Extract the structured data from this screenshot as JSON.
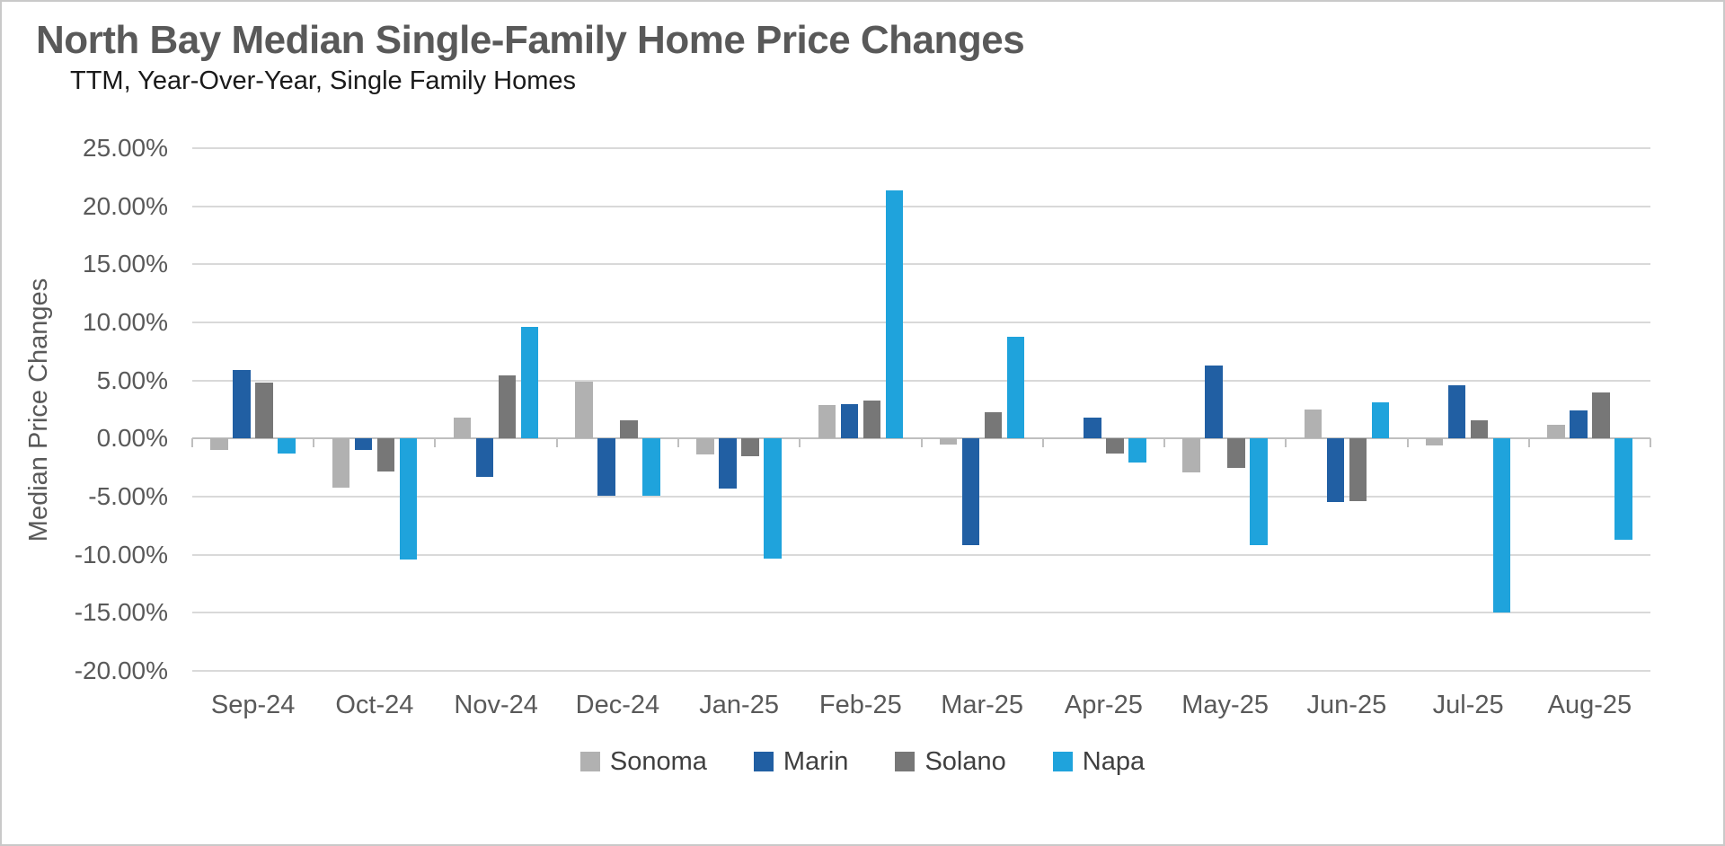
{
  "chart_data": {
    "type": "bar",
    "title": "North Bay Median Single-Family Home Price Changes",
    "subtitle": "TTM, Year-Over-Year, Single Family Homes",
    "ylabel": "Median Price Changes",
    "xlabel": "",
    "ylim": [
      -20,
      25
    ],
    "y_tick_step": 5,
    "y_tick_labels": [
      "25.00%",
      "20.00%",
      "15.00%",
      "10.00%",
      "5.00%",
      "0.00%",
      "-5.00%",
      "-10.00%",
      "-15.00%",
      "-20.00%"
    ],
    "grid": true,
    "legend_position": "bottom",
    "categories": [
      "Sep-24",
      "Oct-24",
      "Nov-24",
      "Dec-24",
      "Jan-25",
      "Feb-25",
      "Mar-25",
      "Apr-25",
      "May-25",
      "Jun-25",
      "Jul-25",
      "Aug-25"
    ],
    "series": [
      {
        "name": "Sonoma",
        "color": "#b1b1b1",
        "values": [
          -1.0,
          -4.2,
          1.8,
          4.9,
          -1.4,
          2.9,
          -0.5,
          0.0,
          -2.9,
          2.5,
          -0.6,
          1.2
        ]
      },
      {
        "name": "Marin",
        "color": "#215fa3",
        "values": [
          5.9,
          -1.0,
          -3.3,
          -4.9,
          -4.3,
          3.0,
          -9.2,
          1.8,
          6.3,
          -5.5,
          4.6,
          2.4
        ]
      },
      {
        "name": "Solano",
        "color": "#777777",
        "values": [
          4.8,
          -2.8,
          5.4,
          1.6,
          -1.5,
          3.3,
          2.3,
          -1.3,
          -2.5,
          -5.4,
          1.6,
          4.0
        ]
      },
      {
        "name": "Napa",
        "color": "#1fa3dc",
        "values": [
          -1.3,
          -10.4,
          9.6,
          -4.9,
          -10.3,
          21.4,
          8.8,
          -2.1,
          -9.2,
          3.1,
          -15.0,
          -8.7
        ]
      }
    ],
    "colors": {
      "grid": "#d9d9d9",
      "axis": "#bfbfbf",
      "tick_text": "#595959",
      "title_text": "#595959",
      "subtitle_text": "#1a1a1a",
      "legend_text": "#3f3f3f"
    }
  }
}
